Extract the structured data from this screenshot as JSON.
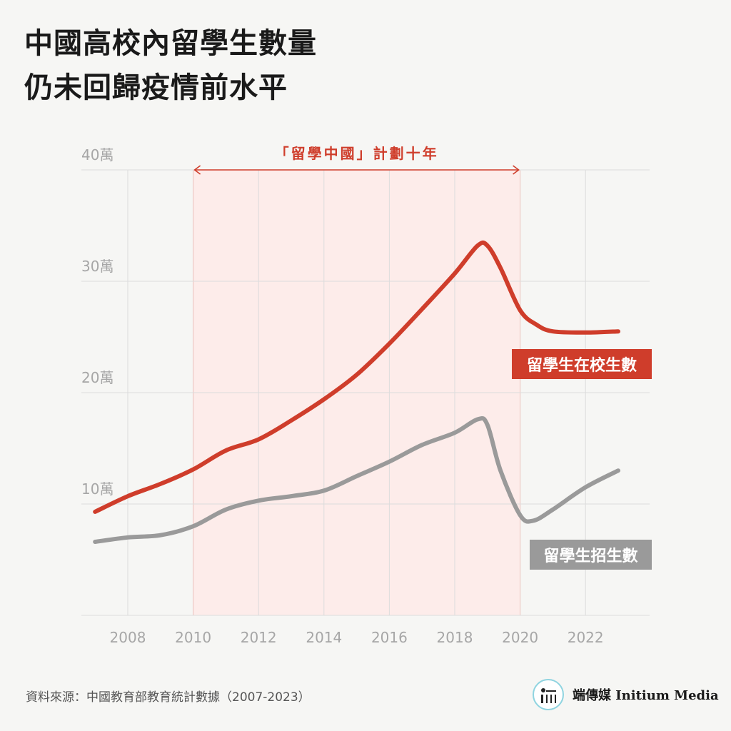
{
  "title_lines": [
    "中國高校內留學生數量",
    "仍未回歸疫情前水平"
  ],
  "source": "資料來源：中國教育部教育統計數據（2007-2023）",
  "brand": "端傳媒 Initium Media",
  "colors": {
    "enrolled": "#cf3d2b",
    "admitted": "#9a9a9a",
    "highlight_band": "#fdecea",
    "annotation": "#cf3d2b",
    "grid": "#dcdcdc",
    "tick_text": "#a6a6a6"
  },
  "chart_data": {
    "type": "line",
    "x_range": [
      2007,
      2023
    ],
    "ylim": [
      0,
      40
    ],
    "y_ticks": [
      10,
      20,
      30,
      40
    ],
    "y_tick_labels": [
      "10萬",
      "20萬",
      "30萬",
      "40萬"
    ],
    "x_ticks": [
      2008,
      2010,
      2012,
      2014,
      2016,
      2018,
      2020,
      2022
    ],
    "x_tick_labels": [
      "2008",
      "2010",
      "2012",
      "2014",
      "2016",
      "2018",
      "2020",
      "2022"
    ],
    "grid": true,
    "highlight": {
      "from": 2010,
      "to": 2020,
      "label": "「留學中國」計劃十年"
    },
    "series": [
      {
        "name": "留學生在校生數",
        "x": [
          2007,
          2008,
          2009,
          2010,
          2011,
          2012,
          2013,
          2014,
          2015,
          2016,
          2017,
          2018,
          2018.7,
          2019,
          2019.4,
          2020,
          2020.5,
          2021,
          2022,
          2023
        ],
        "values": [
          9.3,
          10.7,
          11.8,
          13.1,
          14.8,
          15.8,
          17.5,
          19.4,
          21.6,
          24.4,
          27.5,
          30.7,
          33.2,
          33.2,
          31.2,
          27.4,
          26.1,
          25.5,
          25.4,
          25.5
        ]
      },
      {
        "name": "留學生招生數",
        "x": [
          2007,
          2008,
          2009,
          2010,
          2011,
          2012,
          2013,
          2014,
          2015,
          2016,
          2017,
          2018,
          2018.7,
          2019,
          2019.4,
          2020,
          2020.4,
          2021,
          2022,
          2023
        ],
        "values": [
          6.6,
          7.0,
          7.2,
          8.0,
          9.5,
          10.3,
          10.7,
          11.2,
          12.5,
          13.8,
          15.3,
          16.4,
          17.6,
          17.1,
          13.0,
          9.0,
          8.5,
          9.5,
          11.5,
          13.0
        ]
      }
    ]
  }
}
